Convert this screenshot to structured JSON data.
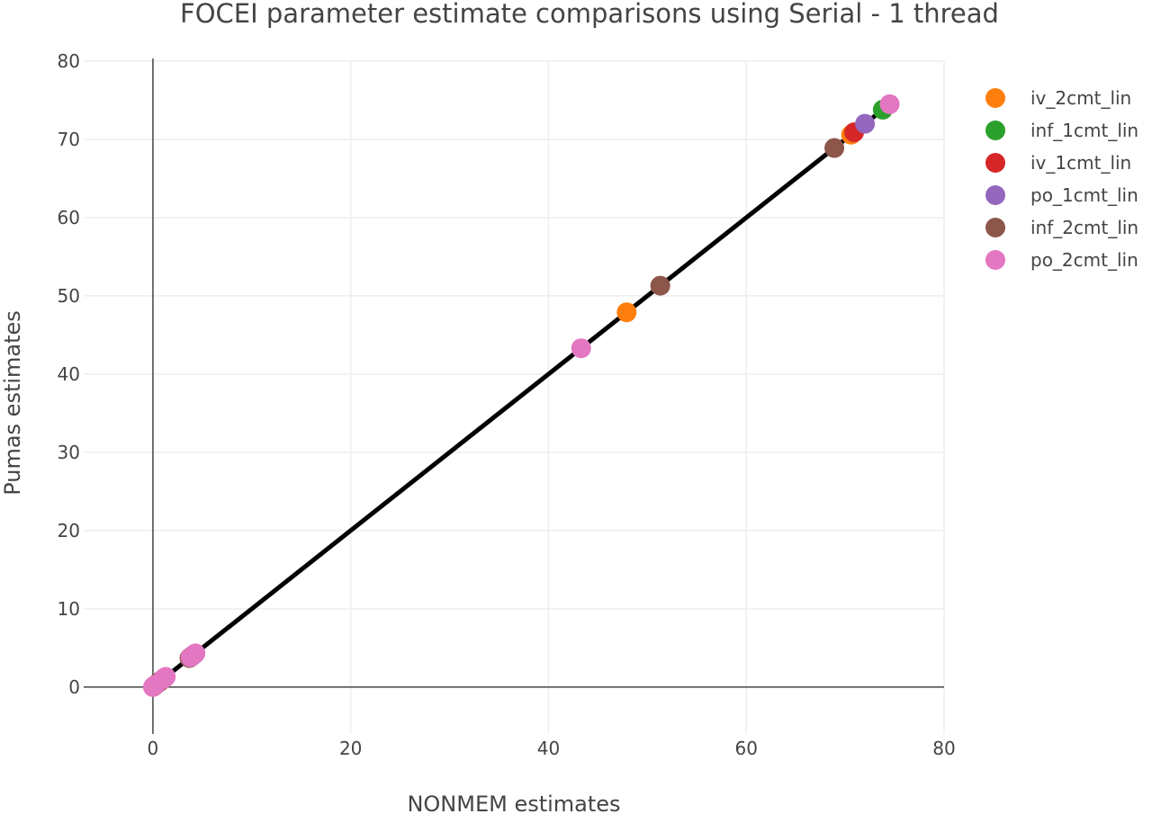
{
  "chart_data": {
    "type": "scatter",
    "title": "FOCEI parameter estimate comparisons using Serial - 1 thread",
    "xlabel": "NONMEM estimates",
    "ylabel": "Pumas estimates",
    "xlim": [
      -7,
      80
    ],
    "ylim": [
      -6,
      80
    ],
    "xticks": [
      0,
      20,
      40,
      60,
      80
    ],
    "yticks": [
      0,
      10,
      20,
      30,
      40,
      50,
      60,
      70,
      80
    ],
    "grid": true,
    "legend": "top-right",
    "identity_line": {
      "from": [
        0,
        0
      ],
      "to": [
        74.5,
        74.5
      ],
      "color": "#000000"
    },
    "series": [
      {
        "name": "iv_2cmt_lin",
        "color": "#ff7f0e",
        "points": [
          [
            0.1,
            0.1
          ],
          [
            0.6,
            0.6
          ],
          [
            1.0,
            1.0
          ],
          [
            3.9,
            3.9
          ],
          [
            47.9,
            47.9
          ],
          [
            70.6,
            70.6
          ]
        ]
      },
      {
        "name": "inf_1cmt_lin",
        "color": "#2ca02c",
        "points": [
          [
            0.05,
            0.05
          ],
          [
            0.7,
            0.7
          ],
          [
            3.8,
            3.8
          ],
          [
            73.8,
            73.8
          ]
        ]
      },
      {
        "name": "iv_1cmt_lin",
        "color": "#d62728",
        "points": [
          [
            0.1,
            0.1
          ],
          [
            0.8,
            0.8
          ],
          [
            4.0,
            4.0
          ],
          [
            70.9,
            70.9
          ]
        ]
      },
      {
        "name": "po_1cmt_lin",
        "color": "#9467bd",
        "points": [
          [
            0.2,
            0.2
          ],
          [
            1.1,
            1.1
          ],
          [
            4.1,
            4.1
          ],
          [
            72.0,
            72.0
          ]
        ]
      },
      {
        "name": "inf_2cmt_lin",
        "color": "#8c564b",
        "points": [
          [
            0.1,
            0.1
          ],
          [
            0.5,
            0.5
          ],
          [
            1.2,
            1.2
          ],
          [
            3.7,
            3.7
          ],
          [
            51.3,
            51.3
          ],
          [
            68.9,
            68.9
          ]
        ]
      },
      {
        "name": "po_2cmt_lin",
        "color": "#e377c2",
        "points": [
          [
            0.0,
            0.0
          ],
          [
            0.3,
            0.3
          ],
          [
            1.0,
            1.0
          ],
          [
            1.3,
            1.3
          ],
          [
            3.8,
            3.8
          ],
          [
            4.3,
            4.3
          ],
          [
            43.3,
            43.3
          ],
          [
            74.5,
            74.5
          ]
        ]
      }
    ]
  }
}
